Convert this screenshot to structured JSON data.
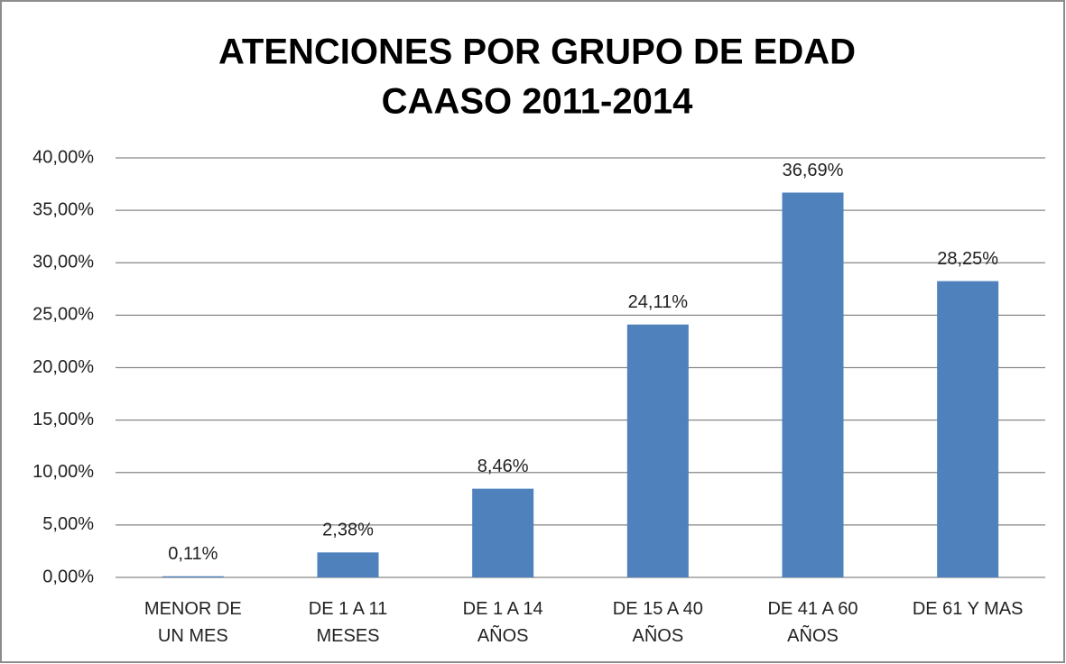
{
  "chart_data": {
    "type": "bar",
    "title": [
      "ATENCIONES POR GRUPO DE EDAD",
      "CAASO 2011-2014"
    ],
    "categories": [
      "MENOR DE UN MES",
      "DE 1 A 11 MESES",
      "DE 1 A 14 AÑOS",
      "DE 15 A 40 AÑOS",
      "DE 41 A 60 AÑOS",
      "DE 61 Y MAS"
    ],
    "values": [
      0.11,
      2.38,
      8.46,
      24.11,
      36.69,
      28.25
    ],
    "value_labels": [
      "0,11%",
      "2,38%",
      "8,46%",
      "24,11%",
      "36,69%",
      "28,25%"
    ],
    "color": "#4f81bd",
    "ylim": [
      0,
      40
    ],
    "yticks": [
      {
        "value": 0,
        "label": "0,00%"
      },
      {
        "value": 5,
        "label": "5,00%"
      },
      {
        "value": 10,
        "label": "10,00%"
      },
      {
        "value": 15,
        "label": "15,00%"
      },
      {
        "value": 20,
        "label": "20,00%"
      },
      {
        "value": 25,
        "label": "25,00%"
      },
      {
        "value": 30,
        "label": "30,00%"
      },
      {
        "value": 35,
        "label": "35,00%"
      },
      {
        "value": 40,
        "label": "40,00%"
      }
    ],
    "grid": true
  }
}
